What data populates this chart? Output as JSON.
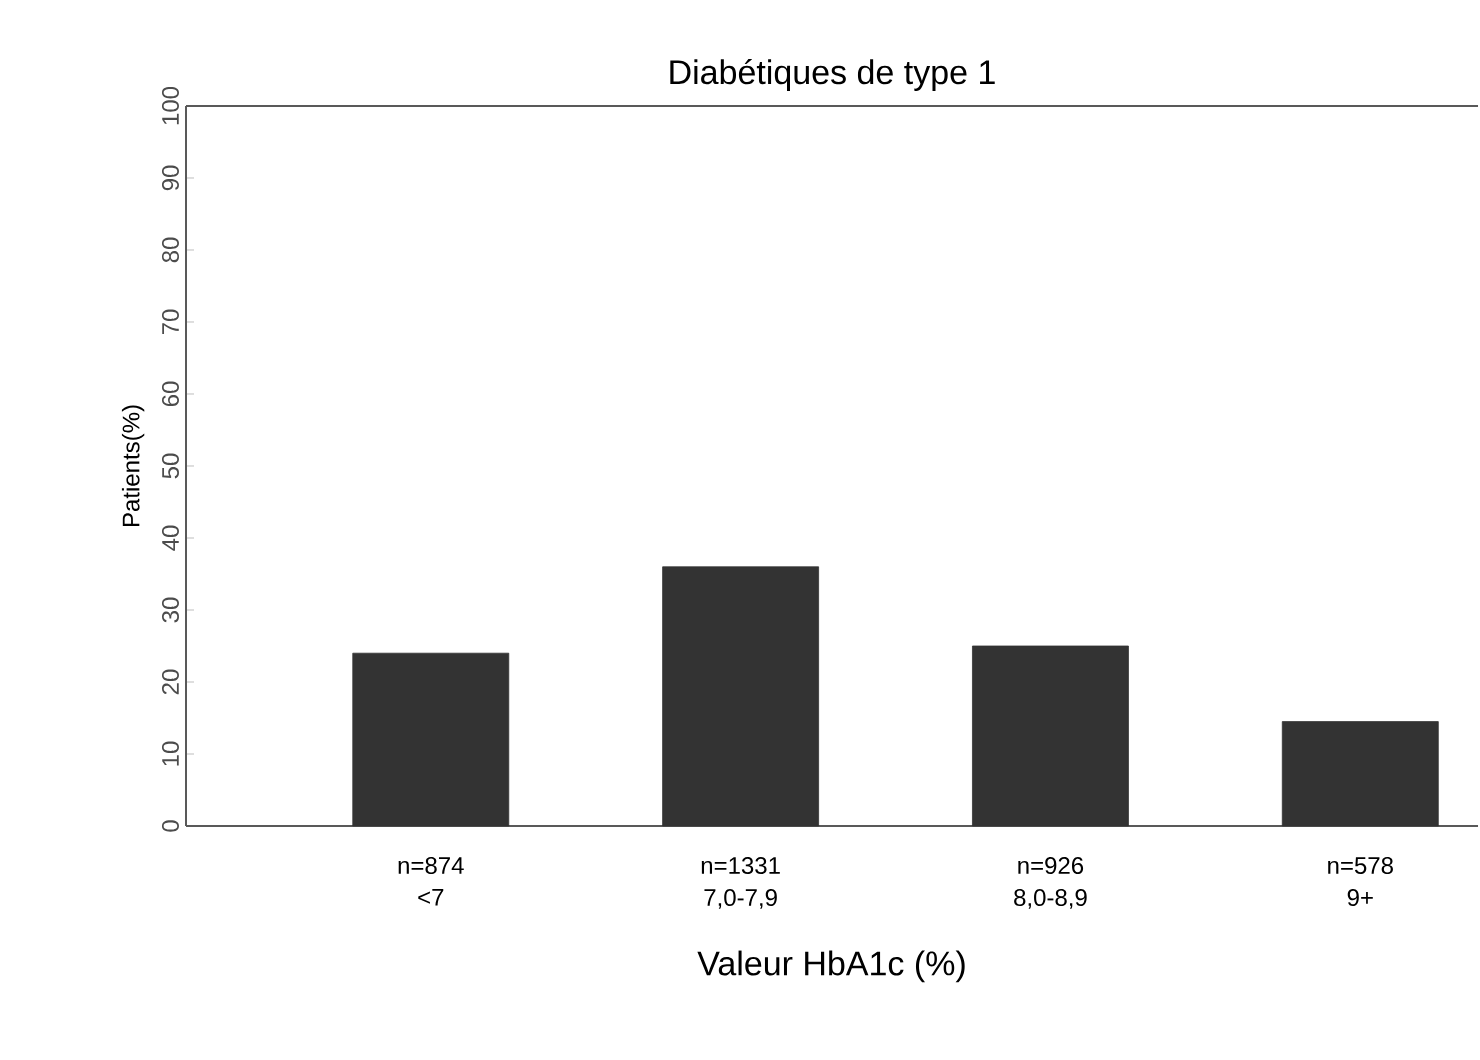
{
  "chart_data": {
    "type": "bar",
    "title": "Diabétiques de type 1",
    "xlabel": "Valeur HbA1c (%)",
    "ylabel": "Patients(%)",
    "categories": [
      "<7",
      "7,0-7,9",
      "8,0-8,9",
      "9+"
    ],
    "values": [
      24,
      36,
      25,
      14.5
    ],
    "color": "#333333",
    "ylim": [
      0,
      100
    ],
    "yticks": [
      0,
      10,
      20,
      30,
      40,
      50,
      60,
      70,
      80,
      90,
      100
    ],
    "annotations": [
      "n=874",
      "n=1331",
      "n=926",
      "n=578"
    ]
  }
}
